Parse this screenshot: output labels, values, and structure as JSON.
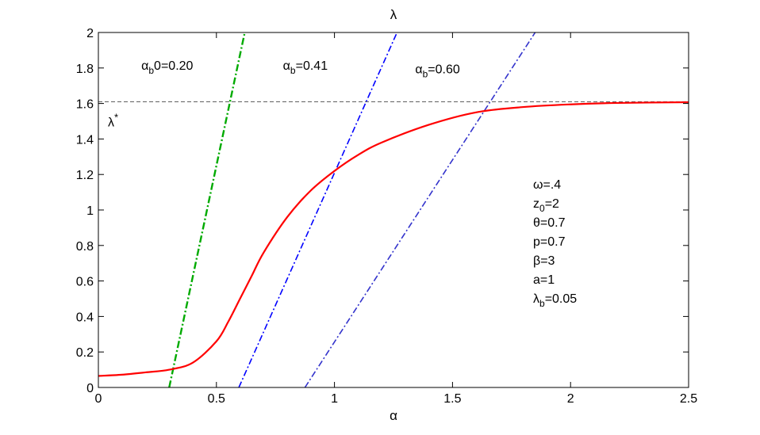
{
  "chart_data": {
    "type": "line",
    "title": "λ",
    "xlabel": "α",
    "ylabel": "",
    "xlim": [
      0,
      2.5
    ],
    "ylim": [
      0,
      2
    ],
    "xticks": [
      "0",
      "0.5",
      "1",
      "1.5",
      "2",
      "2.5"
    ],
    "yticks": [
      "0",
      "0.2",
      "0.4",
      "0.6",
      "0.8",
      "1",
      "1.2",
      "1.4",
      "1.6",
      "1.8",
      "2"
    ],
    "grid": false,
    "legend": "none",
    "reference_line": {
      "y": 1.61,
      "label": "λ*",
      "style": "dashed",
      "color": "#555555"
    },
    "curve": {
      "color": "#ff0000",
      "style": "solid",
      "x": [
        0,
        0.1,
        0.2,
        0.3,
        0.4,
        0.5,
        0.55,
        0.6,
        0.65,
        0.7,
        0.8,
        0.9,
        1.0,
        1.1,
        1.2,
        1.4,
        1.6,
        1.8,
        2.0,
        2.2,
        2.5
      ],
      "y": [
        0.065,
        0.072,
        0.085,
        0.1,
        0.14,
        0.26,
        0.37,
        0.5,
        0.63,
        0.76,
        0.96,
        1.11,
        1.22,
        1.31,
        1.38,
        1.48,
        1.55,
        1.58,
        1.595,
        1.603,
        1.607
      ]
    },
    "series": [
      {
        "label_main": "α",
        "label_sub": "b",
        "label_tail": "0=0.20",
        "x0": 0.3,
        "x1": 0.62,
        "color": "#00aa00",
        "style": "dashdot-bold",
        "label_x": 0.37,
        "label_y": 1.8
      },
      {
        "label_main": "α",
        "label_sub": "b",
        "label_tail": "=0.41",
        "x0": 0.595,
        "x1": 1.265,
        "color": "#0000ff",
        "style": "dashdot",
        "label_x": 0.97,
        "label_y": 1.8
      },
      {
        "label_main": "α",
        "label_sub": "b",
        "label_tail": "=0.60",
        "x0": 0.875,
        "x1": 1.85,
        "color": "#3333cc",
        "style": "dashdot",
        "label_x": 1.53,
        "label_y": 1.78
      }
    ],
    "parameters": [
      {
        "main": "ω",
        "sub": "",
        "tail": "=.4"
      },
      {
        "main": "z",
        "sub": "0",
        "tail": "=2"
      },
      {
        "main": "θ",
        "sub": "",
        "tail": "=0.7"
      },
      {
        "main": "p",
        "sub": "",
        "tail": "=0.7"
      },
      {
        "main": "β",
        "sub": "",
        "tail": "=3"
      },
      {
        "main": "a",
        "sub": "",
        "tail": "=1"
      },
      {
        "main": "λ",
        "sub": "b",
        "tail": "=0.05"
      }
    ]
  }
}
